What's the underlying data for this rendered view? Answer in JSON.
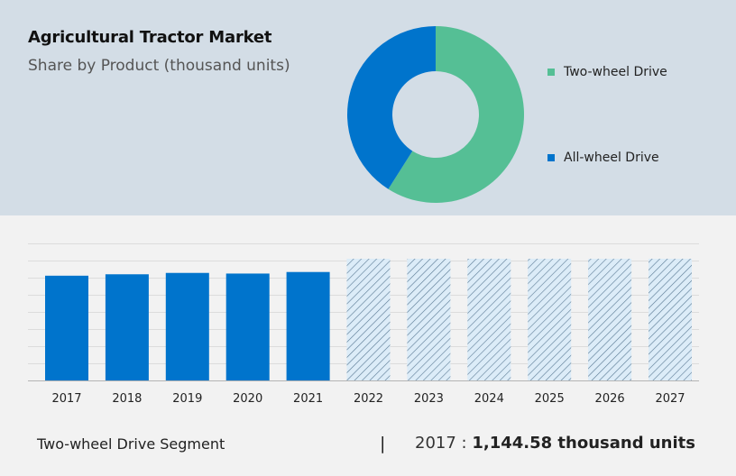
{
  "header": {
    "title": "Agricultural Tractor Market",
    "subtitle": "Share by Product (thousand units)"
  },
  "legend": [
    {
      "label": "Two-wheel Drive",
      "color": "#55bf95"
    },
    {
      "label": "All-wheel Drive",
      "color": "#0074cc"
    }
  ],
  "footer": {
    "segment_label": "Two-wheel Drive Segment",
    "separator": "|",
    "year": "2017",
    "colon": " : ",
    "value": "1,144.58 thousand units"
  },
  "colors": {
    "top_panel_bg": "#d3dde6",
    "page_bg": "#f2f2f2",
    "actual_bar": "#0074cc",
    "forecast_fill": "#dcecf8",
    "forecast_hatch": "#5a7a94",
    "two_wheel": "#55bf95",
    "all_wheel": "#0074cc"
  },
  "chart_data": [
    {
      "type": "pie",
      "title": "Agricultural Tractor Market",
      "subtitle": "Share by Product (thousand units)",
      "donut": true,
      "categories": [
        "Two-wheel Drive",
        "All-wheel Drive"
      ],
      "values": [
        59,
        41
      ],
      "units": "approx. % share",
      "legend_position": "right"
    },
    {
      "type": "bar",
      "title": "",
      "xlabel": "",
      "ylabel": "",
      "categories": [
        "2017",
        "2018",
        "2019",
        "2020",
        "2021",
        "2022",
        "2023",
        "2024",
        "2025",
        "2026",
        "2027"
      ],
      "values": [
        1144.58,
        1160,
        1175,
        1168,
        1185,
        1330,
        1330,
        1330,
        1330,
        1330,
        1330
      ],
      "forecast_from": "2022",
      "y_axis_labels_shown": false,
      "grid": true,
      "series_name": "Two-wheel Drive Segment",
      "note": "Values after 2017 estimated from bar heights relative to 2017 = 1,144.58 thousand units; forecast bars (2022–2027) drawn hatched"
    }
  ]
}
